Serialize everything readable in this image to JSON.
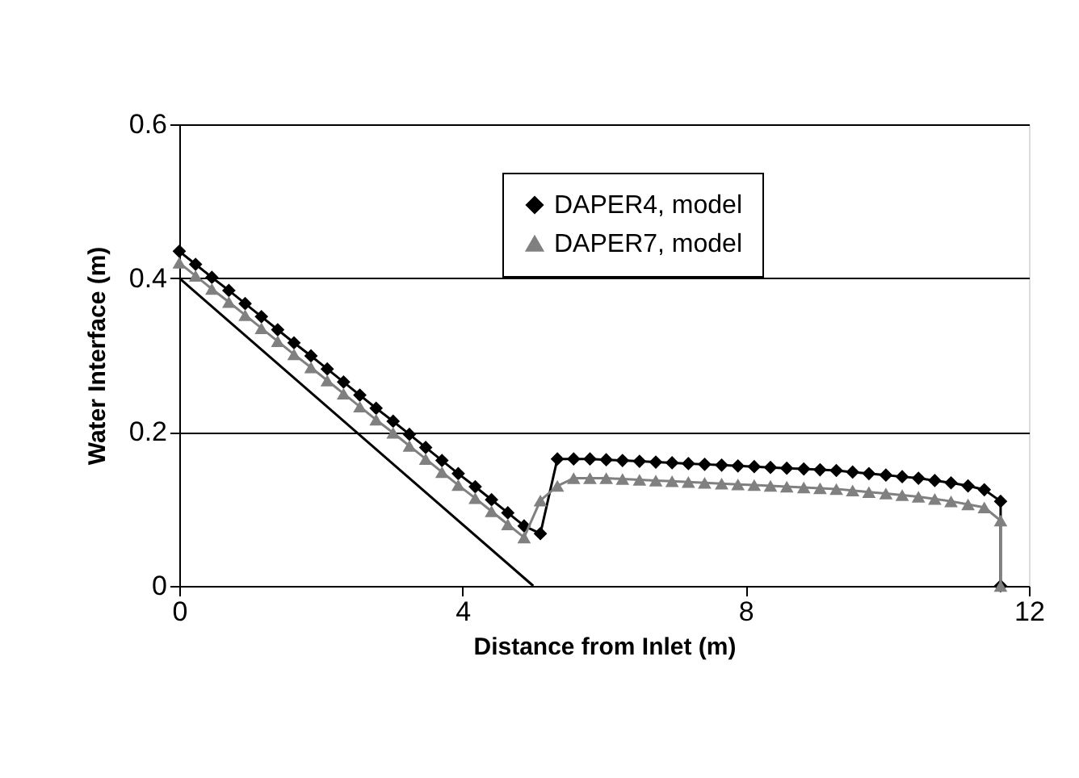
{
  "chart_data": {
    "type": "line",
    "xlabel": "Distance from Inlet (m)",
    "ylabel": "Water Interface (m)",
    "xlim": [
      0,
      12
    ],
    "xticks": [
      0,
      4,
      8,
      12
    ],
    "ylim": [
      0,
      0.6
    ],
    "yticks": [
      0,
      0.2,
      0.4,
      0.6
    ],
    "grid": "y",
    "legend": "top right",
    "series": [
      {
        "name": "DAPER4, model",
        "color": "#000000",
        "marker": "diamond",
        "x": [
          0,
          0.23,
          0.46,
          0.7,
          0.93,
          1.16,
          1.39,
          1.62,
          1.86,
          2.09,
          2.32,
          2.55,
          2.78,
          3.02,
          3.25,
          3.48,
          3.71,
          3.94,
          4.18,
          4.41,
          4.64,
          4.87,
          5.1,
          5.34,
          5.57,
          5.8,
          6.03,
          6.26,
          6.5,
          6.73,
          6.96,
          7.19,
          7.42,
          7.66,
          7.89,
          8.12,
          8.35,
          8.58,
          8.82,
          9.05,
          9.28,
          9.51,
          9.74,
          9.98,
          10.21,
          10.44,
          10.67,
          10.9,
          11.14,
          11.37,
          11.6,
          11.6
        ],
        "values": [
          0.435,
          0.418,
          0.401,
          0.384,
          0.367,
          0.35,
          0.333,
          0.316,
          0.299,
          0.282,
          0.265,
          0.248,
          0.231,
          0.214,
          0.197,
          0.18,
          0.163,
          0.146,
          0.129,
          0.112,
          0.095,
          0.078,
          0.068,
          0.165,
          0.165,
          0.165,
          0.164,
          0.163,
          0.162,
          0.161,
          0.16,
          0.159,
          0.158,
          0.157,
          0.156,
          0.155,
          0.154,
          0.153,
          0.152,
          0.151,
          0.15,
          0.148,
          0.146,
          0.144,
          0.142,
          0.14,
          0.137,
          0.134,
          0.13,
          0.125,
          0.11,
          0
        ]
      },
      {
        "name": "DAPER7, model",
        "color": "#808080",
        "marker": "triangle",
        "x": [
          0,
          0.23,
          0.46,
          0.7,
          0.93,
          1.16,
          1.39,
          1.62,
          1.86,
          2.09,
          2.32,
          2.55,
          2.78,
          3.02,
          3.25,
          3.48,
          3.71,
          3.94,
          4.18,
          4.41,
          4.64,
          4.87,
          5.1,
          5.34,
          5.57,
          5.8,
          6.03,
          6.26,
          6.5,
          6.73,
          6.96,
          7.19,
          7.42,
          7.66,
          7.89,
          8.12,
          8.35,
          8.58,
          8.82,
          9.05,
          9.28,
          9.51,
          9.74,
          9.98,
          10.21,
          10.44,
          10.67,
          10.9,
          11.14,
          11.37,
          11.6,
          11.6
        ],
        "values": [
          0.42,
          0.403,
          0.386,
          0.369,
          0.352,
          0.335,
          0.318,
          0.301,
          0.284,
          0.267,
          0.25,
          0.233,
          0.216,
          0.199,
          0.182,
          0.165,
          0.148,
          0.131,
          0.114,
          0.097,
          0.08,
          0.063,
          0.111,
          0.13,
          0.14,
          0.14,
          0.14,
          0.139,
          0.138,
          0.137,
          0.136,
          0.135,
          0.134,
          0.133,
          0.132,
          0.131,
          0.13,
          0.129,
          0.128,
          0.127,
          0.126,
          0.124,
          0.122,
          0.12,
          0.118,
          0.116,
          0.113,
          0.11,
          0.106,
          0.102,
          0.085,
          0
        ]
      },
      {
        "color": "#000000",
        "marker": "none",
        "x": [
          0,
          5
        ],
        "values": [
          0.4,
          0
        ]
      }
    ]
  }
}
